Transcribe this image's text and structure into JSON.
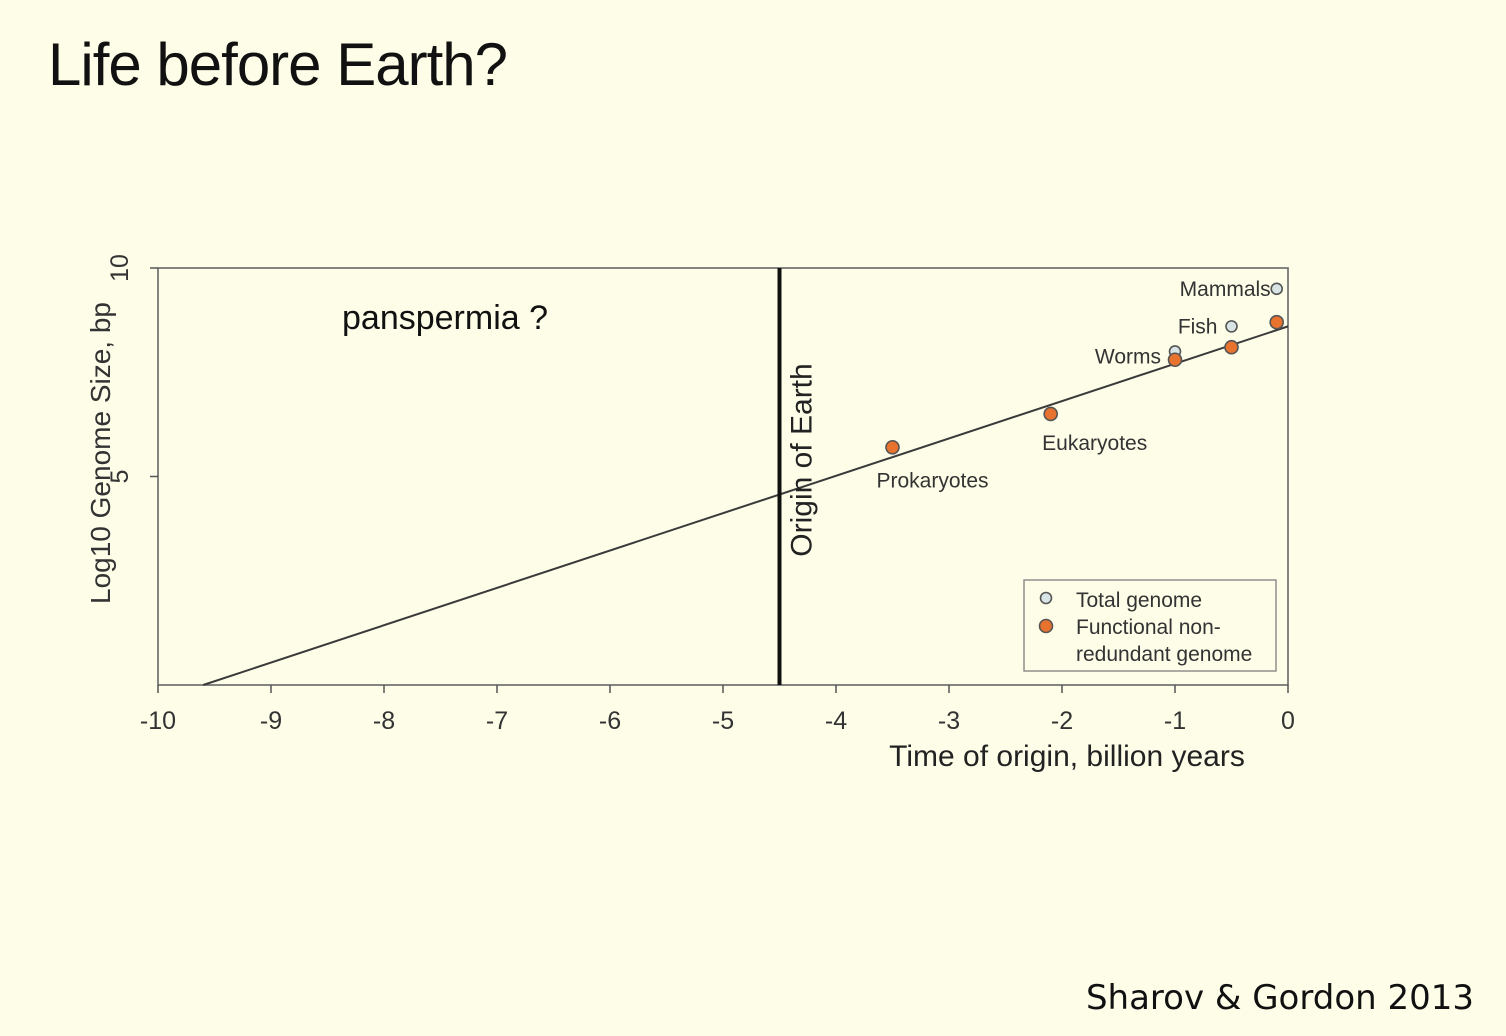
{
  "slide": {
    "title": "Life before Earth?",
    "citation": "Sharov & Gordon 2013"
  },
  "chart_data": {
    "type": "scatter",
    "xlabel": "Time of origin, billion years",
    "ylabel": "Log10 Genome Size, bp",
    "xlim": [
      -10,
      0
    ],
    "ylim": [
      0,
      10
    ],
    "x_ticks": [
      -10,
      -9,
      -8,
      -7,
      -6,
      -5,
      -4,
      -3,
      -2,
      -1,
      0
    ],
    "x_tick_labels": [
      "-10",
      "-9",
      "-8",
      "-7",
      "-6",
      "-5",
      "-4",
      "-3",
      "-2",
      "-1",
      "0"
    ],
    "y_ticks": [
      5,
      10
    ],
    "y_tick_labels": [
      "5",
      "10"
    ],
    "grid": false,
    "colors": {
      "functional": "#e8732e",
      "total": "#d9e4e4",
      "marker_edge": "#555555",
      "line": "#3a3a3a"
    },
    "series": [
      {
        "name": "Total genome",
        "marker": "open-circle",
        "points": [
          {
            "x": -0.1,
            "y": 9.5,
            "label": "Mammals"
          },
          {
            "x": -0.5,
            "y": 8.6,
            "label": "Fish"
          },
          {
            "x": -1.0,
            "y": 8.0,
            "label": "Worms"
          }
        ]
      },
      {
        "name": "Functional non-redundant genome",
        "marker": "filled-circle",
        "points": [
          {
            "x": -3.5,
            "y": 5.7,
            "label": "Prokaryotes"
          },
          {
            "x": -2.1,
            "y": 6.5,
            "label": "Eukaryotes"
          },
          {
            "x": -1.0,
            "y": 7.8,
            "label": ""
          },
          {
            "x": -0.5,
            "y": 8.1,
            "label": ""
          },
          {
            "x": -0.1,
            "y": 8.7,
            "label": ""
          }
        ]
      }
    ],
    "trend_line": {
      "x": [
        -9.6,
        0
      ],
      "y": [
        0,
        8.6
      ]
    },
    "vertical_marker": {
      "x": -4.5,
      "label": "Origin   of   Earth"
    },
    "annotation": "panspermia ?",
    "legend": {
      "position": "bottom-right",
      "entries": [
        "Total genome",
        "Functional non-\nredundant genome"
      ]
    }
  }
}
